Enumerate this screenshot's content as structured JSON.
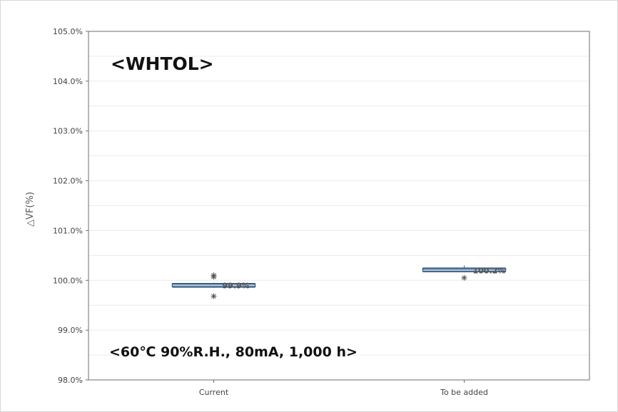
{
  "chart_data": {
    "type": "boxplot",
    "title": "<WHTOL>",
    "annotation": "<60℃ 90%R.H., 80mA, 1,000 h>",
    "ylabel": "△VF(%)",
    "xlabel": "",
    "ylim": [
      98.0,
      105.0
    ],
    "yticks": [
      98.0,
      99.0,
      100.0,
      101.0,
      102.0,
      103.0,
      104.0,
      105.0
    ],
    "ytick_labels": [
      "98.0%",
      "99.0%",
      "100.0%",
      "101.0%",
      "102.0%",
      "103.0%",
      "104.0%",
      "105.0%"
    ],
    "grid": true,
    "categories": [
      "Current",
      "To be added"
    ],
    "series": [
      {
        "category": "Current",
        "median": 99.9,
        "q1": 99.87,
        "q3": 99.93,
        "whisker_low": 99.85,
        "whisker_high": 99.95,
        "outliers": [
          100.1,
          100.07,
          99.68
        ],
        "median_label": "99.9%"
      },
      {
        "category": "To be added",
        "median": 100.2,
        "q1": 100.18,
        "q3": 100.24,
        "whisker_low": 100.16,
        "whisker_high": 100.3,
        "outliers": [
          100.05
        ],
        "median_label": "100.2%"
      }
    ],
    "colors": {
      "box_fill": "#7a9cc0",
      "box_edge": "#2e4e72",
      "axis": "#6e6e6e",
      "grid": "#ececec",
      "outlier": "#555555"
    }
  }
}
